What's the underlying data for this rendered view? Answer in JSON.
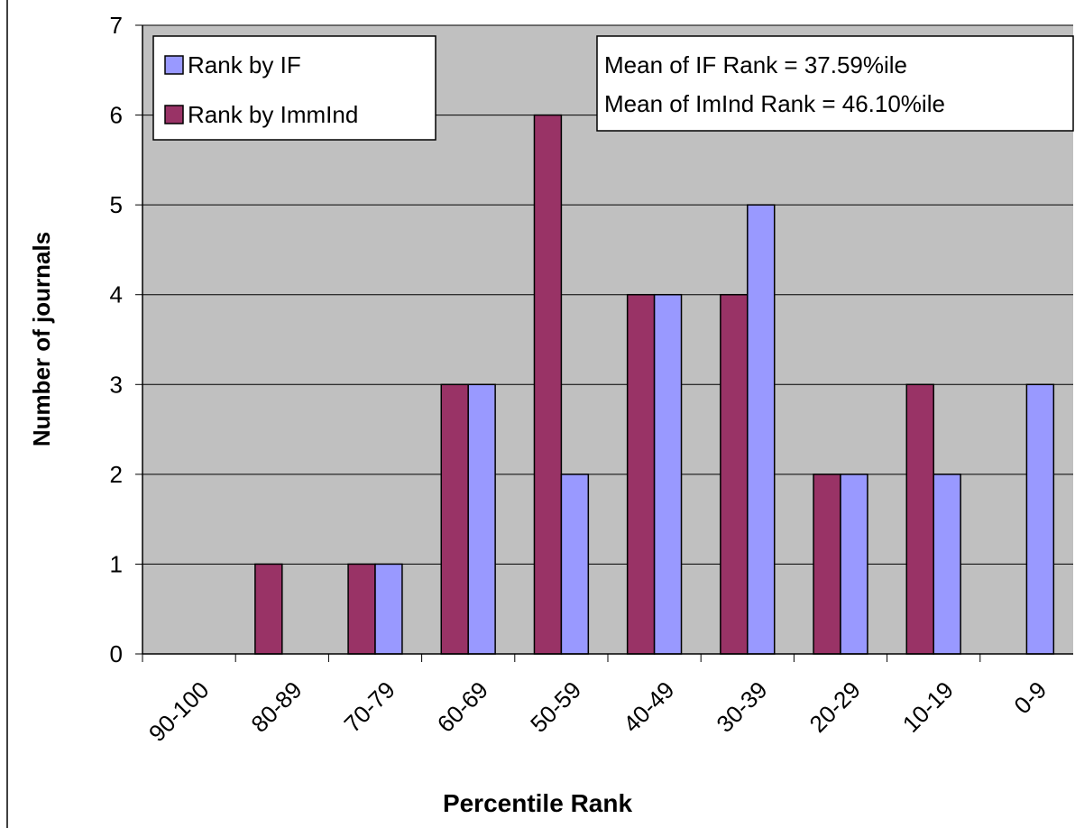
{
  "chart_data": {
    "type": "bar",
    "x_label": "Percentile Rank",
    "y_label": "Number of journals",
    "categories": [
      "90-100",
      "80-89",
      "70-79",
      "60-69",
      "50-59",
      "40-49",
      "30-39",
      "20-29",
      "10-19",
      "0-9"
    ],
    "series": [
      {
        "name": "Rank by ImmInd",
        "color": "#993366",
        "values": [
          0,
          1,
          1,
          3,
          6,
          4,
          4,
          2,
          3,
          0
        ]
      },
      {
        "name": "Rank by IF",
        "color": "#9999ff",
        "values": [
          0,
          0,
          1,
          3,
          2,
          4,
          5,
          2,
          2,
          3
        ]
      }
    ],
    "legend_order": [
      1,
      0
    ],
    "legend_position": "upper left",
    "annotations": [
      "Mean of IF Rank = 37.59%ile",
      "Mean of ImInd Rank = 46.10%ile"
    ],
    "ylim": [
      0,
      7
    ],
    "yticks": [
      0,
      1,
      2,
      3,
      4,
      5,
      6,
      7
    ],
    "grid": true,
    "plot_background": "#c0c0c0"
  }
}
